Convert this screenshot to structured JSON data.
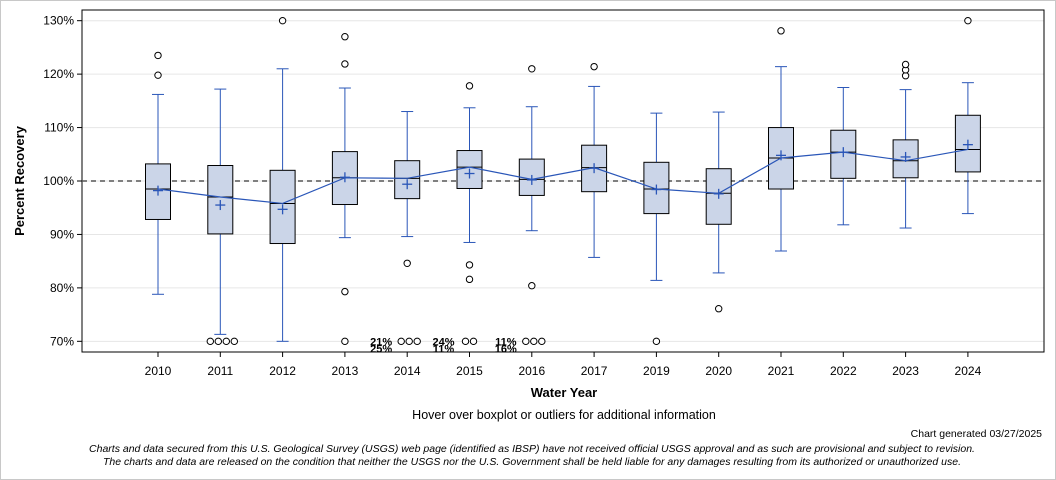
{
  "chart_data": {
    "type": "boxplot",
    "ylabel": "Percent Recovery",
    "xlabel": "Water Year",
    "ylim": [
      68,
      132
    ],
    "yticks": [
      70,
      80,
      90,
      100,
      110,
      120,
      130
    ],
    "ytick_suffix": "%",
    "reference_line": 100,
    "categories": [
      {
        "year": "2010",
        "q1": 92.8,
        "median": 98.5,
        "q3": 103.2,
        "wlow": 78.8,
        "whigh": 116.2,
        "mean": 98.2,
        "outliers": [
          119.8,
          123.5
        ]
      },
      {
        "year": "2011",
        "q1": 90.1,
        "median": 97.0,
        "q3": 102.9,
        "wlow": 71.3,
        "whigh": 117.2,
        "mean": 95.5,
        "outliers": [
          70,
          70,
          70,
          70
        ]
      },
      {
        "year": "2012",
        "q1": 88.3,
        "median": 95.8,
        "q3": 102.0,
        "wlow": 70.0,
        "whigh": 121.0,
        "mean": 94.7,
        "outliers": [
          130.0
        ]
      },
      {
        "year": "2013",
        "q1": 95.6,
        "median": 100.6,
        "q3": 105.5,
        "wlow": 89.4,
        "whigh": 117.4,
        "mean": 100.7,
        "outliers": [
          79.3,
          70.0,
          121.9,
          127.0
        ]
      },
      {
        "year": "2014",
        "q1": 96.7,
        "median": 100.5,
        "q3": 103.8,
        "wlow": 89.6,
        "whigh": 113.0,
        "mean": 99.4,
        "outliers": [
          84.6,
          70,
          70,
          70
        ]
      },
      {
        "year": "2015",
        "q1": 98.6,
        "median": 102.6,
        "q3": 105.7,
        "wlow": 88.5,
        "whigh": 113.7,
        "mean": 101.4,
        "outliers": [
          84.3,
          81.6,
          70,
          70,
          117.8
        ]
      },
      {
        "year": "2016",
        "q1": 97.3,
        "median": 100.3,
        "q3": 104.1,
        "wlow": 90.7,
        "whigh": 113.9,
        "mean": 100.2,
        "outliers": [
          80.4,
          70,
          70,
          70,
          121.0
        ]
      },
      {
        "year": "2017",
        "q1": 98.0,
        "median": 102.5,
        "q3": 106.7,
        "wlow": 85.7,
        "whigh": 117.7,
        "mean": 102.4,
        "outliers": [
          121.4
        ]
      },
      {
        "year": "2019",
        "q1": 93.9,
        "median": 98.5,
        "q3": 103.5,
        "wlow": 81.4,
        "whigh": 112.7,
        "mean": 98.4,
        "outliers": [
          70.0
        ]
      },
      {
        "year": "2020",
        "q1": 91.9,
        "median": 97.7,
        "q3": 102.3,
        "wlow": 82.8,
        "whigh": 112.9,
        "mean": 97.6,
        "outliers": [
          76.1
        ]
      },
      {
        "year": "2021",
        "q1": 98.5,
        "median": 104.3,
        "q3": 110.0,
        "wlow": 86.9,
        "whigh": 121.4,
        "mean": 104.8,
        "outliers": [
          128.1
        ]
      },
      {
        "year": "2022",
        "q1": 100.5,
        "median": 105.4,
        "q3": 109.5,
        "wlow": 91.8,
        "whigh": 117.5,
        "mean": 105.4,
        "outliers": []
      },
      {
        "year": "2023",
        "q1": 100.6,
        "median": 103.8,
        "q3": 107.7,
        "wlow": 91.2,
        "whigh": 117.1,
        "mean": 104.5,
        "outliers": [
          119.7,
          120.8,
          121.8
        ]
      },
      {
        "year": "2024",
        "q1": 101.7,
        "median": 105.9,
        "q3": 112.3,
        "wlow": 93.9,
        "whigh": 118.4,
        "mean": 106.8,
        "outliers": [
          130.0
        ]
      }
    ],
    "below_labels": [
      {
        "year": "2014",
        "upper": "21%",
        "lower": "25%"
      },
      {
        "year": "2015",
        "upper": "24%",
        "lower": "11%"
      },
      {
        "year": "2016",
        "upper": "11%",
        "lower": "16%"
      }
    ],
    "colors": {
      "box_fill": "#cbd5e8",
      "box_stroke": "#000000",
      "whisker": "#2a56b8",
      "mean_line": "#2a56b8",
      "mean_marker": "#2a56b8",
      "grid": "#e6e6e6",
      "reference": "#555555"
    }
  },
  "footer": {
    "hover_note": "Hover over boxplot or outliers for additional information",
    "generated": "Chart generated 03/27/2025",
    "disclaimer_line1": "Charts and data secured from this U.S. Geological Survey (USGS) web page (identified as IBSP) have not received official USGS approval and as such are provisional and subject to revision.",
    "disclaimer_line2": "The charts and data are released on the condition that neither the USGS nor the U.S. Government shall be held liable for any damages resulting from its authorized or unauthorized use."
  }
}
